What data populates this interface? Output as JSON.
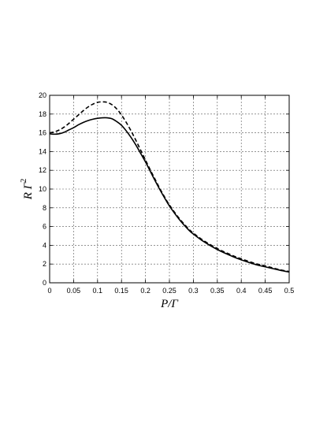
{
  "chart_data": {
    "type": "line",
    "xlabel": "P/Γ",
    "ylabel_main": "R Γ",
    "ylabel_sup": "2",
    "xlim": [
      0,
      0.5
    ],
    "ylim": [
      0,
      20
    ],
    "xticks": [
      0,
      0.05,
      0.1,
      0.15,
      0.2,
      0.25,
      0.3,
      0.35,
      0.4,
      0.45,
      0.5
    ],
    "yticks": [
      0,
      2,
      4,
      6,
      8,
      10,
      12,
      14,
      16,
      18,
      20
    ],
    "grid": true,
    "series": [
      {
        "style": "solid",
        "x": [
          0,
          0.01,
          0.02,
          0.03,
          0.04,
          0.05,
          0.06,
          0.07,
          0.08,
          0.09,
          0.1,
          0.11,
          0.12,
          0.13,
          0.14,
          0.15,
          0.16,
          0.17,
          0.18,
          0.19,
          0.2,
          0.21,
          0.22,
          0.23,
          0.24,
          0.25,
          0.27,
          0.29,
          0.3,
          0.32,
          0.35,
          0.38,
          0.4,
          0.43,
          0.45,
          0.48,
          0.5
        ],
        "y": [
          15.9,
          15.85,
          15.9,
          16.05,
          16.3,
          16.55,
          16.85,
          17.1,
          17.3,
          17.45,
          17.55,
          17.6,
          17.6,
          17.5,
          17.2,
          16.8,
          16.2,
          15.5,
          14.7,
          13.8,
          12.9,
          11.9,
          10.9,
          9.95,
          9.05,
          8.2,
          6.8,
          5.65,
          5.2,
          4.45,
          3.55,
          2.85,
          2.45,
          1.95,
          1.7,
          1.35,
          1.15
        ]
      },
      {
        "style": "dashed",
        "x": [
          0,
          0.01,
          0.02,
          0.03,
          0.04,
          0.05,
          0.06,
          0.07,
          0.08,
          0.09,
          0.1,
          0.11,
          0.12,
          0.13,
          0.14,
          0.15,
          0.16,
          0.17,
          0.18,
          0.19,
          0.2,
          0.21,
          0.22,
          0.23,
          0.24,
          0.25,
          0.27,
          0.29,
          0.3,
          0.32,
          0.35,
          0.38,
          0.4,
          0.43,
          0.45,
          0.48,
          0.5
        ],
        "y": [
          16.0,
          16.1,
          16.3,
          16.6,
          17.0,
          17.45,
          17.9,
          18.35,
          18.75,
          19.05,
          19.25,
          19.3,
          19.25,
          19.0,
          18.55,
          17.9,
          17.1,
          16.2,
          15.2,
          14.15,
          13.1,
          12.05,
          11.05,
          10.05,
          9.15,
          8.3,
          6.9,
          5.75,
          5.3,
          4.55,
          3.65,
          2.95,
          2.55,
          2.05,
          1.8,
          1.4,
          1.2
        ]
      }
    ]
  }
}
